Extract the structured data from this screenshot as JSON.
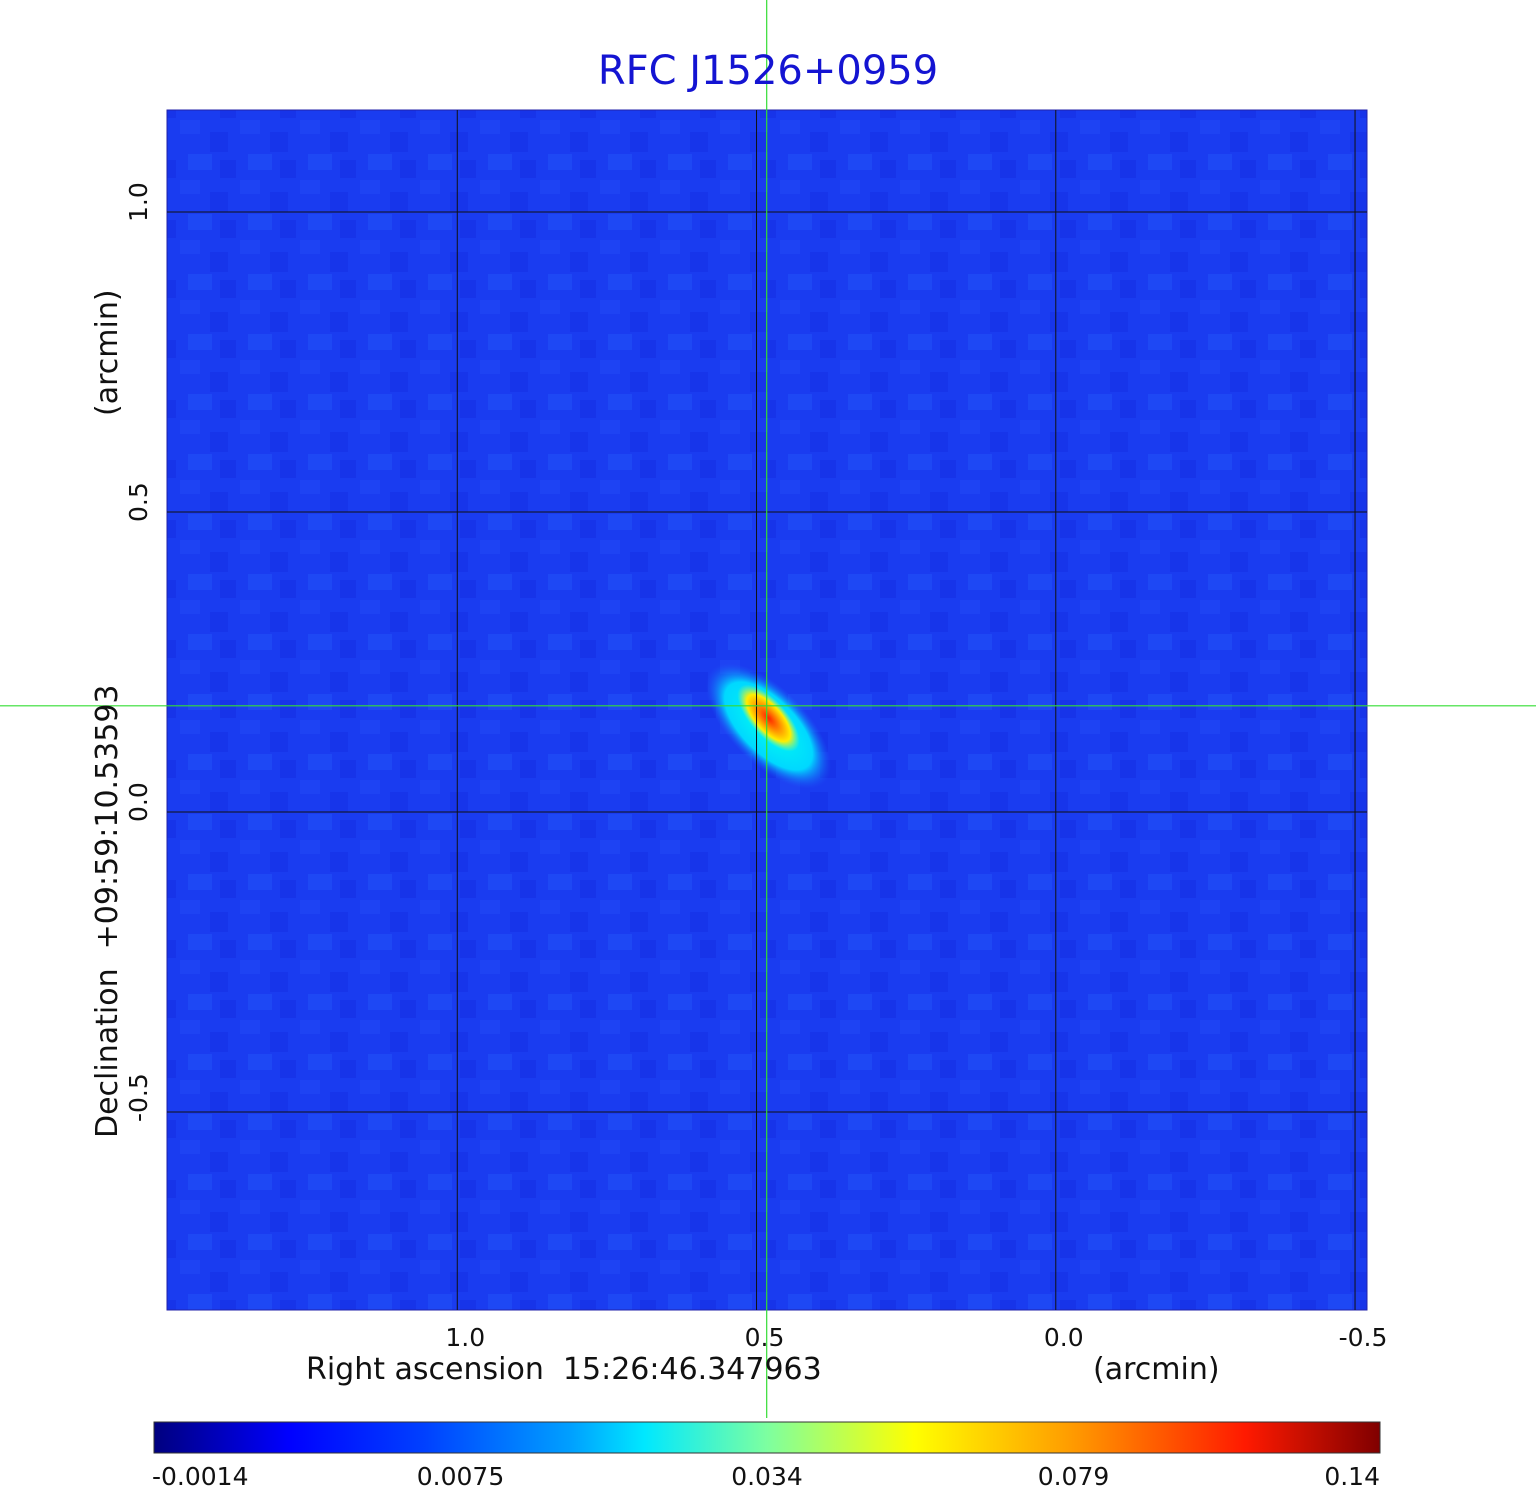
{
  "chart_data": {
    "type": "heatmap",
    "title": "RFC J1526+0959",
    "xlabel": "Right ascension  15:26:46.347963",
    "xunit": "(arcmin)",
    "ylabel": "Declination  +09:59:10.53593",
    "yunit": "(arcmin)",
    "xlim": [
      1.485,
      -0.52
    ],
    "ylim": [
      -0.83,
      1.17
    ],
    "x_ticks": [
      1.0,
      0.5,
      0.0,
      -0.5
    ],
    "x_tick_labels": [
      "1.0",
      "0.5",
      "0.0",
      "-0.5"
    ],
    "y_ticks": [
      1.0,
      0.5,
      0.0,
      -0.5
    ],
    "y_tick_labels": [
      "1.0",
      "0.5",
      "0.0",
      "-0.5"
    ],
    "grid": true,
    "colormap": "jet",
    "colorbar": {
      "orientation": "horizontal",
      "placement": "bottom",
      "tick_labels": [
        "-0.0014",
        "0.0075",
        "0.034",
        "0.079",
        "0.14"
      ],
      "range": [
        -0.0014,
        0.14
      ]
    },
    "source_peak": {
      "x": 0.48,
      "y": 0.16,
      "value": 0.14
    },
    "crosshair": {
      "x": 0.483,
      "y": 0.177,
      "color": "#33dd33"
    },
    "colors": {
      "title": "#1414d2",
      "background_map": "#1a3cf0",
      "grid": "#111111"
    }
  }
}
